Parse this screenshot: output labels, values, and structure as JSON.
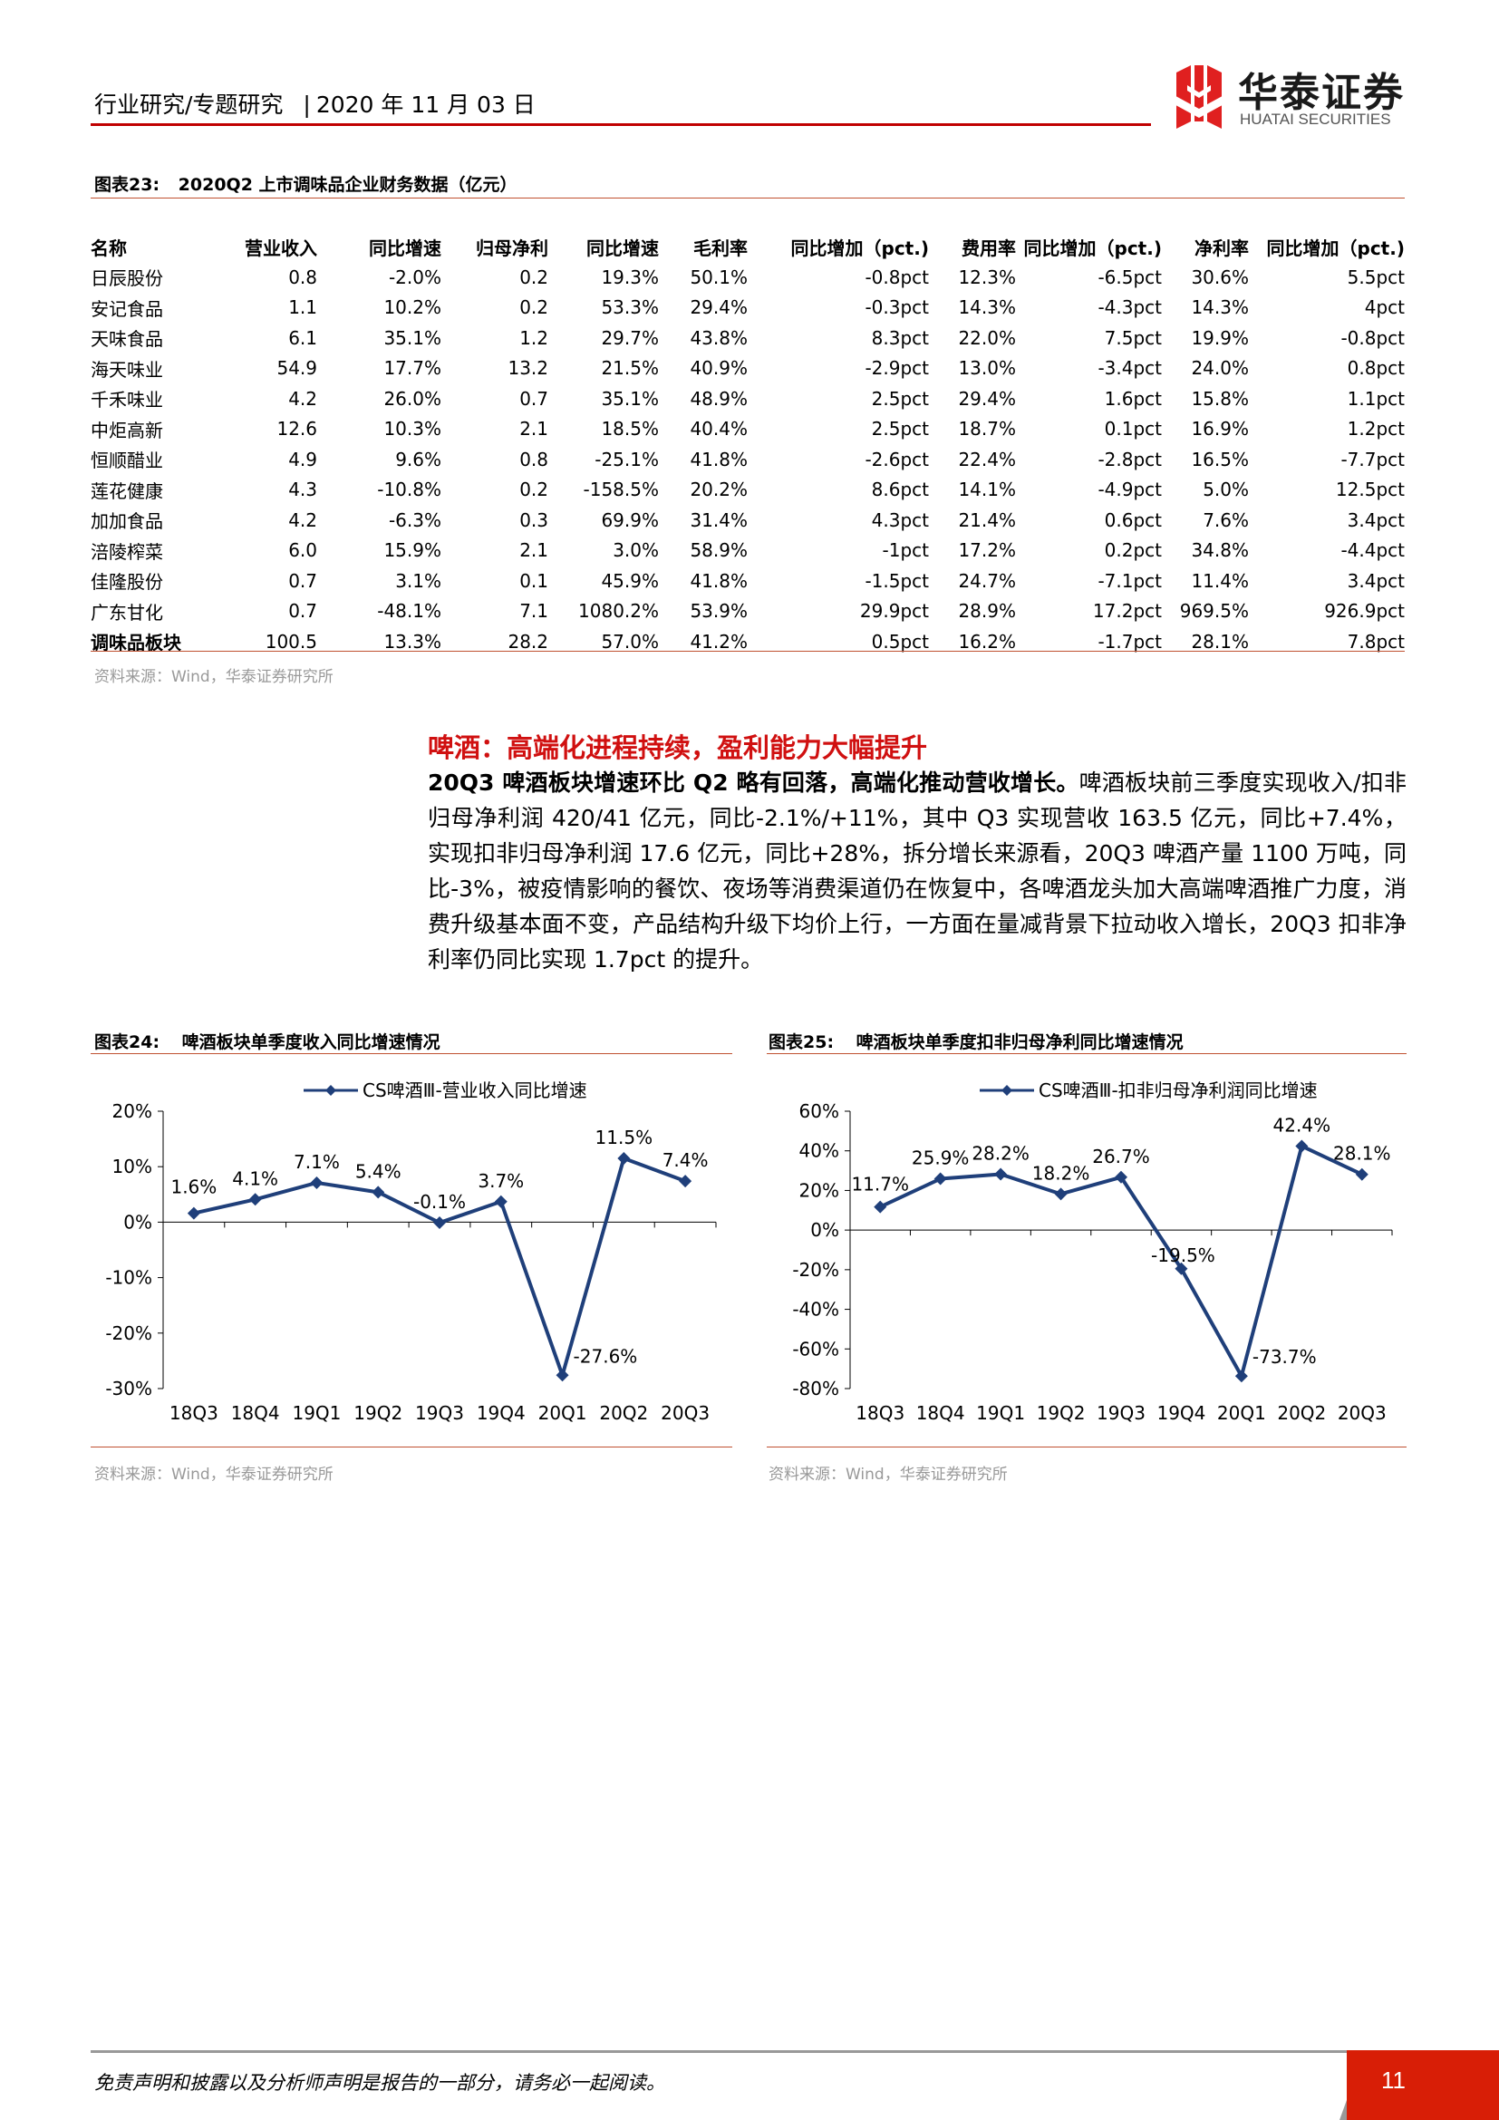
{
  "header": {
    "breadcrumb": "行业研究/专题研究",
    "separator": "|",
    "date": "2020 年 11 月 03 日",
    "logo_cn": "华泰证券",
    "logo_en": "HUATAI SECURITIES",
    "accent_color": "#c00000"
  },
  "figure23": {
    "caption": "图表23:",
    "title": "2020Q2 上市调味品企业财务数据（亿元）",
    "columns": [
      "名称",
      "营业收入",
      "同比增速",
      "归母净利",
      "同比增速",
      "毛利率",
      "同比增加（pct.)",
      "费用率",
      "同比增加（pct.)",
      "净利率",
      "同比增加（pct.)"
    ],
    "rows": [
      [
        "日辰股份",
        "0.8",
        "-2.0%",
        "0.2",
        "19.3%",
        "50.1%",
        "-0.8pct",
        "12.3%",
        "-6.5pct",
        "30.6%",
        "5.5pct"
      ],
      [
        "安记食品",
        "1.1",
        "10.2%",
        "0.2",
        "53.3%",
        "29.4%",
        "-0.3pct",
        "14.3%",
        "-4.3pct",
        "14.3%",
        "4pct"
      ],
      [
        "天味食品",
        "6.1",
        "35.1%",
        "1.2",
        "29.7%",
        "43.8%",
        "8.3pct",
        "22.0%",
        "7.5pct",
        "19.9%",
        "-0.8pct"
      ],
      [
        "海天味业",
        "54.9",
        "17.7%",
        "13.2",
        "21.5%",
        "40.9%",
        "-2.9pct",
        "13.0%",
        "-3.4pct",
        "24.0%",
        "0.8pct"
      ],
      [
        "千禾味业",
        "4.2",
        "26.0%",
        "0.7",
        "35.1%",
        "48.9%",
        "2.5pct",
        "29.4%",
        "1.6pct",
        "15.8%",
        "1.1pct"
      ],
      [
        "中炬高新",
        "12.6",
        "10.3%",
        "2.1",
        "18.5%",
        "40.4%",
        "2.5pct",
        "18.7%",
        "0.1pct",
        "16.9%",
        "1.2pct"
      ],
      [
        "恒顺醋业",
        "4.9",
        "9.6%",
        "0.8",
        "-25.1%",
        "41.8%",
        "-2.6pct",
        "22.4%",
        "-2.8pct",
        "16.5%",
        "-7.7pct"
      ],
      [
        "莲花健康",
        "4.3",
        "-10.8%",
        "0.2",
        "-158.5%",
        "20.2%",
        "8.6pct",
        "14.1%",
        "-4.9pct",
        "5.0%",
        "12.5pct"
      ],
      [
        "加加食品",
        "4.2",
        "-6.3%",
        "0.3",
        "69.9%",
        "31.4%",
        "4.3pct",
        "21.4%",
        "0.6pct",
        "7.6%",
        "3.4pct"
      ],
      [
        "涪陵榨菜",
        "6.0",
        "15.9%",
        "2.1",
        "3.0%",
        "58.9%",
        "-1pct",
        "17.2%",
        "0.2pct",
        "34.8%",
        "-4.4pct"
      ],
      [
        "佳隆股份",
        "0.7",
        "3.1%",
        "0.1",
        "45.9%",
        "41.8%",
        "-1.5pct",
        "24.7%",
        "-7.1pct",
        "11.4%",
        "3.4pct"
      ],
      [
        "广东甘化",
        "0.7",
        "-48.1%",
        "7.1",
        "1080.2%",
        "53.9%",
        "29.9pct",
        "28.9%",
        "17.2pct",
        "969.5%",
        "926.9pct"
      ],
      [
        "调味品板块",
        "100.5",
        "13.3%",
        "28.2",
        "57.0%",
        "41.2%",
        "0.5pct",
        "16.2%",
        "-1.7pct",
        "28.1%",
        "7.8pct"
      ]
    ],
    "source": "资料来源：Wind，华泰证券研究所"
  },
  "beer": {
    "title": "啤酒：高端化进程持续，盈利能力大幅提升",
    "lead": "20Q3 啤酒板块增速环比 Q2 略有回落，高端化推动营收增长。",
    "body": "啤酒板块前三季度实现收入/扣非归母净利润 420/41 亿元，同比-2.1%/+11%，其中 Q3 实现营收 163.5 亿元，同比+7.4%，实现扣非归母净利润 17.6 亿元，同比+28%，拆分增长来源看，20Q3 啤酒产量 1100 万吨，同比-3%，被疫情影响的餐饮、夜场等消费渠道仍在恢复中，各啤酒龙头加大高端啤酒推广力度，消费升级基本面不变，产品结构升级下均价上行，一方面在量减背景下拉动收入增长，20Q3 扣非净利率仍同比实现 1.7pct 的提升。"
  },
  "figure24": {
    "caption": "图表24:",
    "title": "啤酒板块单季度收入同比增速情况",
    "source": "资料来源：Wind，华泰证券研究所"
  },
  "figure25": {
    "caption": "图表25:",
    "title": "啤酒板块单季度扣非归母净利同比增速情况",
    "source": "资料来源：Wind，华泰证券研究所"
  },
  "chart_data": [
    {
      "type": "line",
      "legend": "CS啤酒Ⅲ-营业收入同比增速",
      "legend_position": "top-center",
      "categories": [
        "18Q3",
        "18Q4",
        "19Q1",
        "19Q2",
        "19Q3",
        "19Q4",
        "20Q1",
        "20Q2",
        "20Q3"
      ],
      "series": [
        {
          "name": "CS啤酒Ⅲ-营业收入同比增速",
          "values": [
            1.6,
            4.1,
            7.1,
            5.4,
            -0.1,
            3.7,
            -27.6,
            11.5,
            7.4
          ]
        }
      ],
      "data_labels": [
        "1.6%",
        "4.1%",
        "7.1%",
        "5.4%",
        "-0.1%",
        "3.7%",
        "-27.6%",
        "11.5%",
        "7.4%"
      ],
      "ylim": [
        -30,
        20
      ],
      "yticks": [
        20,
        10,
        0,
        -10,
        -20,
        -30
      ],
      "ytick_labels": [
        "20%",
        "10%",
        "0%",
        "-10%",
        "-20%",
        "-30%"
      ],
      "color": "#1f3f7a",
      "grid": false
    },
    {
      "type": "line",
      "legend": "CS啤酒Ⅲ-扣非归母净利润同比增速",
      "legend_position": "top-center",
      "categories": [
        "18Q3",
        "18Q4",
        "19Q1",
        "19Q2",
        "19Q3",
        "19Q4",
        "20Q1",
        "20Q2",
        "20Q3"
      ],
      "series": [
        {
          "name": "CS啤酒Ⅲ-扣非归母净利润同比增速",
          "values": [
            11.7,
            25.9,
            28.2,
            18.2,
            26.7,
            -19.5,
            -73.7,
            42.4,
            28.1
          ]
        }
      ],
      "data_labels": [
        "11.7%",
        "25.9%",
        "28.2%",
        "18.2%",
        "26.7%",
        "-19.5%",
        "-73.7%",
        "42.4%",
        "28.1%"
      ],
      "ylim": [
        -80,
        60
      ],
      "yticks": [
        60,
        40,
        20,
        0,
        -20,
        -40,
        -60,
        -80
      ],
      "ytick_labels": [
        "60%",
        "40%",
        "20%",
        "0%",
        "-20%",
        "-40%",
        "-60%",
        "-80%"
      ],
      "color": "#1f3f7a",
      "grid": false
    }
  ],
  "footer": {
    "disclaimer": "免责声明和披露以及分析师声明是报告的一部分，请务必一起阅读。",
    "page_number": "11",
    "page_color": "#d81e06"
  }
}
